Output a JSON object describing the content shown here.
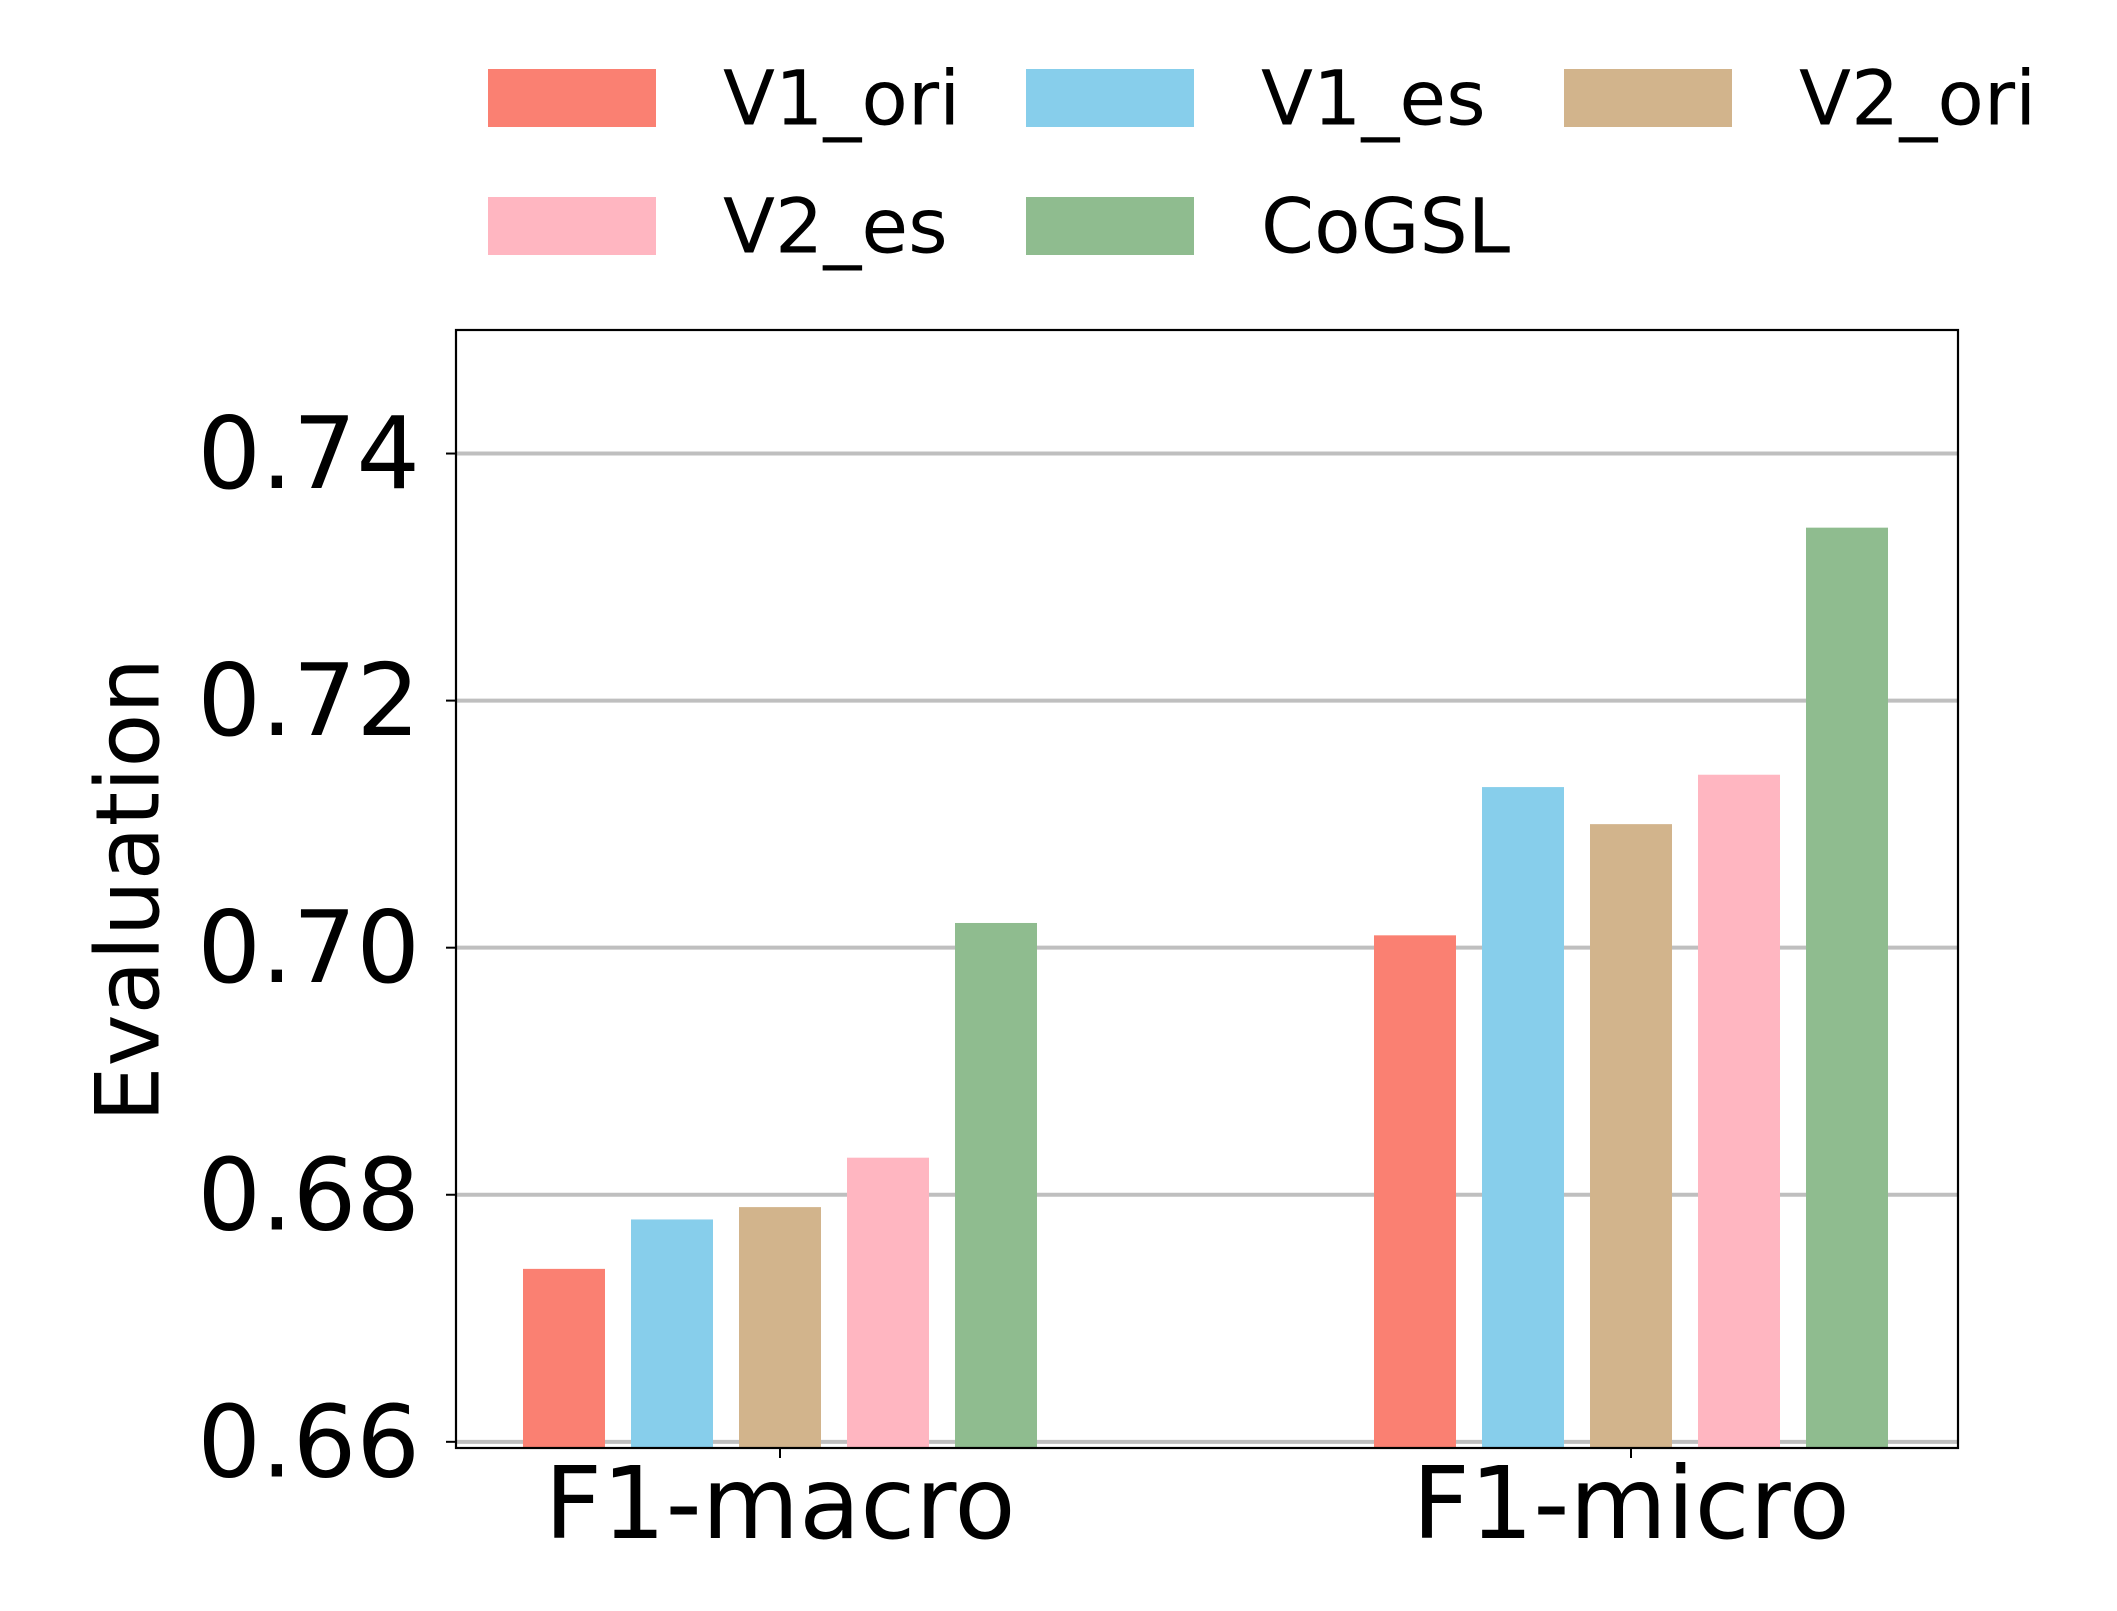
{
  "chart_data": {
    "type": "bar",
    "title": "",
    "xlabel": "",
    "ylabel": "Evaluation",
    "ylim": [
      0.6595,
      0.75
    ],
    "yticks": [
      0.66,
      0.68,
      0.7,
      0.72,
      0.74
    ],
    "ytick_labels": [
      "0.66",
      "0.68",
      "0.70",
      "0.72",
      "0.74"
    ],
    "grid": "horizontal",
    "legend_position": "top",
    "categories": [
      "F1-macro",
      "F1-micro"
    ],
    "series": [
      {
        "name": "V1_ori",
        "color": "#fa8072",
        "values": [
          0.674,
          0.701
        ]
      },
      {
        "name": "V1_es",
        "color": "#87ceeb",
        "values": [
          0.678,
          0.713
        ]
      },
      {
        "name": "V2_ori",
        "color": "#d2b48c",
        "values": [
          0.679,
          0.71
        ]
      },
      {
        "name": "V2_es",
        "color": "#ffb6c1",
        "values": [
          0.683,
          0.714
        ]
      },
      {
        "name": "CoGSL",
        "color": "#8fbc8f",
        "values": [
          0.702,
          0.734
        ]
      }
    ]
  }
}
